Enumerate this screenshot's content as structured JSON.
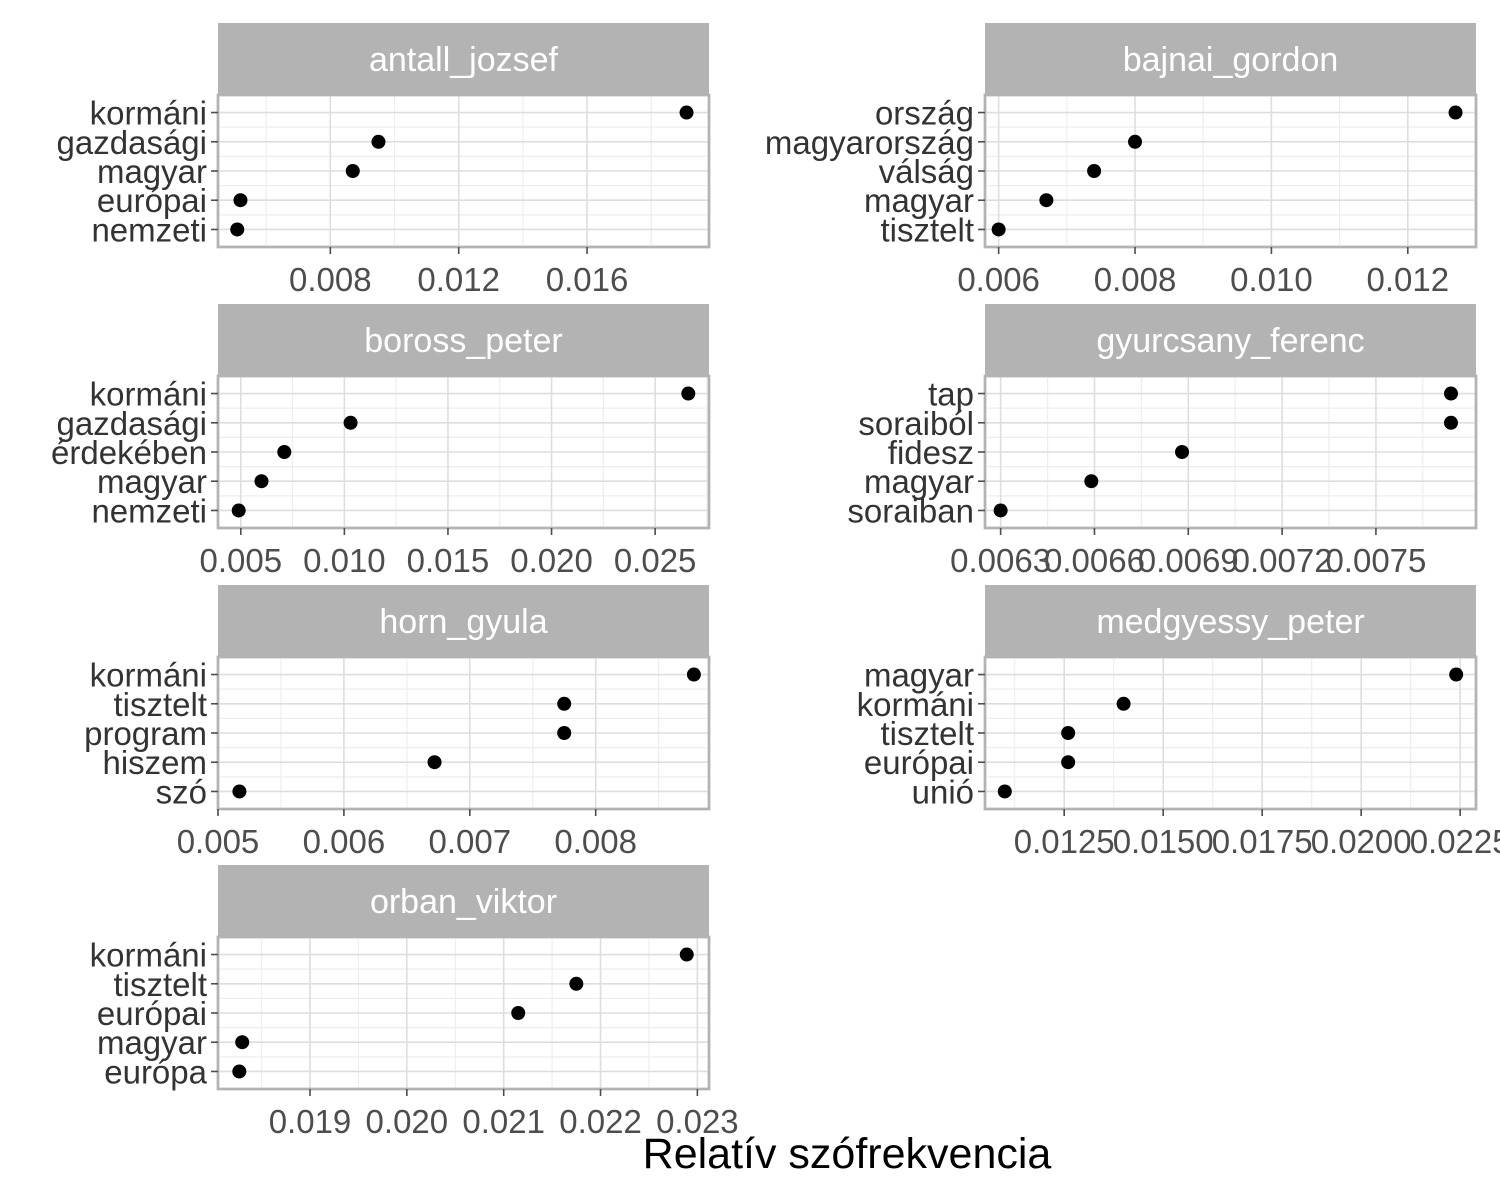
{
  "chart_data": {
    "type": "scatter",
    "xlabel": "Relatív szófrekvencia",
    "ylabel": "",
    "grid": true,
    "panels": [
      {
        "name": "antall_jozsef",
        "categories": [
          "nemzeti",
          "európai",
          "magyar",
          "gazdasági",
          "kormáni"
        ],
        "values": [
          0.0051,
          0.0052,
          0.0087,
          0.0095,
          0.0191
        ],
        "xlim": [
          0.0045,
          0.0198
        ],
        "xticks": [
          0.008,
          0.012,
          0.016
        ],
        "xtick_labels": [
          "0.008",
          "0.012",
          "0.016"
        ]
      },
      {
        "name": "bajnai_gordon",
        "categories": [
          "tisztelt",
          "magyar",
          "válság",
          "magyarország",
          "ország"
        ],
        "values": [
          0.006,
          0.0067,
          0.0074,
          0.008,
          0.0127
        ],
        "xlim": [
          0.0058,
          0.013
        ],
        "xticks": [
          0.006,
          0.008,
          0.01,
          0.012
        ],
        "xtick_labels": [
          "0.006",
          "0.008",
          "0.010",
          "0.012"
        ]
      },
      {
        "name": "boross_peter",
        "categories": [
          "nemzeti",
          "magyar",
          "érdekében",
          "gazdasági",
          "kormáni"
        ],
        "values": [
          0.0049,
          0.006,
          0.0071,
          0.0103,
          0.0266
        ],
        "xlim": [
          0.0039,
          0.0276
        ],
        "xticks": [
          0.005,
          0.01,
          0.015,
          0.02,
          0.025
        ],
        "xtick_labels": [
          "0.005",
          "0.010",
          "0.015",
          "0.020",
          "0.025"
        ]
      },
      {
        "name": "gyurcsany_ferenc",
        "categories": [
          "soraiban",
          "magyar",
          "fidesz",
          "soraiból",
          "tap"
        ],
        "values": [
          0.0063,
          0.00659,
          0.00688,
          0.00774,
          0.00774
        ],
        "xlim": [
          0.00625,
          0.00782
        ],
        "xticks": [
          0.0063,
          0.0066,
          0.0069,
          0.0072,
          0.0075
        ],
        "xtick_labels": [
          "0.0063",
          "0.0066",
          "0.0069",
          "0.0072",
          "0.0075"
        ]
      },
      {
        "name": "horn_gyula",
        "categories": [
          "szó",
          "hiszem",
          "program",
          "tisztelt",
          "kormáni"
        ],
        "values": [
          0.00517,
          0.00672,
          0.00775,
          0.00775,
          0.00878
        ],
        "xlim": [
          0.005,
          0.0089
        ],
        "xticks": [
          0.005,
          0.006,
          0.007,
          0.008
        ],
        "xtick_labels": [
          "0.005",
          "0.006",
          "0.007",
          "0.008"
        ]
      },
      {
        "name": "medgyessy_peter",
        "categories": [
          "unió",
          "európai",
          "tisztelt",
          "kormáni",
          "magyar"
        ],
        "values": [
          0.011,
          0.0126,
          0.0126,
          0.014,
          0.0224
        ],
        "xlim": [
          0.0105,
          0.0229
        ],
        "xticks": [
          0.0125,
          0.015,
          0.0175,
          0.02,
          0.0225
        ],
        "xtick_labels": [
          "0.0125",
          "0.0150",
          "0.0175",
          "0.0200",
          "0.0225"
        ]
      },
      {
        "name": "orban_viktor",
        "categories": [
          "európa",
          "magyar",
          "európai",
          "tisztelt",
          "kormáni"
        ],
        "values": [
          0.01827,
          0.0183,
          0.02115,
          0.02175,
          0.02289
        ],
        "xlim": [
          0.01805,
          0.02312
        ],
        "xticks": [
          0.019,
          0.02,
          0.021,
          0.022,
          0.023
        ],
        "xtick_labels": [
          "0.019",
          "0.020",
          "0.021",
          "0.022",
          "0.023"
        ]
      }
    ]
  }
}
